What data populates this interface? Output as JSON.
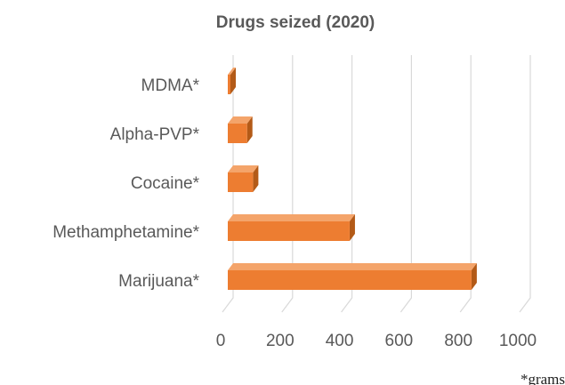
{
  "chart_data": {
    "type": "bar",
    "orientation": "horizontal",
    "style": "3d",
    "title": "Drugs seized (2020)",
    "categories": [
      "MDMA*",
      "Alpha-PVP*",
      "Cocaine*",
      "Methamphetamine*",
      "Marijuana*"
    ],
    "values": [
      5,
      65,
      85,
      410,
      820
    ],
    "xlim": [
      0,
      1000
    ],
    "xticks": [
      0,
      200,
      400,
      600,
      800,
      1000
    ],
    "xlabel": "",
    "ylabel": "",
    "grid": true,
    "legend": "none",
    "colors": {
      "bar_front": "#ed7d31",
      "bar_top": "#f4a46a",
      "bar_side": "#b35a17",
      "grid": "#d9d9d9"
    }
  },
  "footnote": "*grams"
}
